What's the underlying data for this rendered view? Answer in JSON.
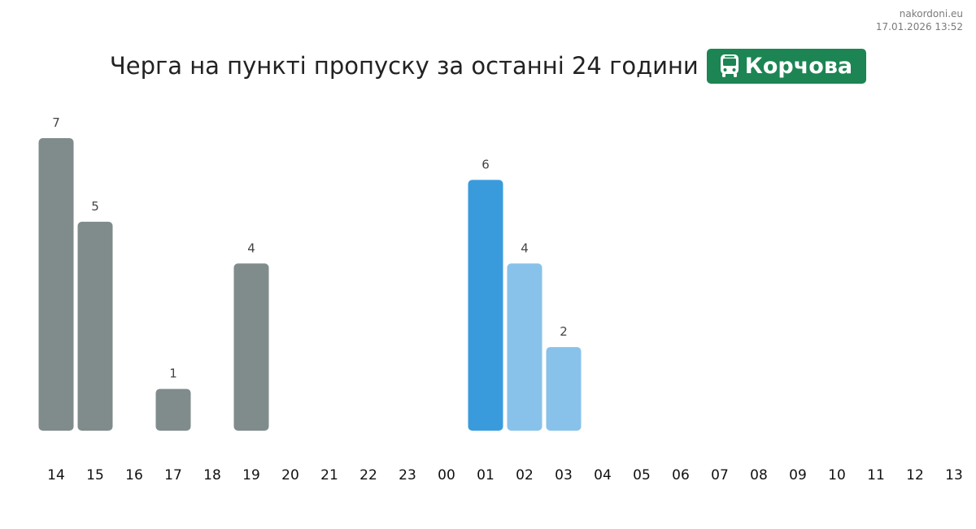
{
  "source": {
    "site": "nakordoni.eu",
    "timestamp": "17.01.2026 13:52"
  },
  "header": {
    "title": "Черга на пункті пропуску за останні 24 години",
    "badge": {
      "label": "Корчова",
      "icon": "bus-icon",
      "color": "#1c8553"
    }
  },
  "colors": {
    "past": "#7f8c8b",
    "current": "#3a9bdc",
    "forecast": "#88c2ea"
  },
  "chart_data": {
    "type": "bar",
    "categories": [
      "14",
      "15",
      "16",
      "17",
      "18",
      "19",
      "20",
      "21",
      "22",
      "23",
      "00",
      "01",
      "02",
      "03",
      "04",
      "05",
      "06",
      "07",
      "08",
      "09",
      "10",
      "11",
      "12",
      "13"
    ],
    "values": [
      7,
      5,
      0,
      1,
      0,
      4,
      0,
      0,
      0,
      0,
      0,
      6,
      4,
      2,
      0,
      0,
      0,
      0,
      0,
      0,
      0,
      0,
      0,
      0
    ],
    "bar_status": [
      "past",
      "past",
      "past",
      "past",
      "past",
      "past",
      "past",
      "past",
      "past",
      "past",
      "past",
      "current",
      "forecast",
      "forecast",
      "forecast",
      "forecast",
      "forecast",
      "forecast",
      "forecast",
      "forecast",
      "forecast",
      "forecast",
      "forecast",
      "forecast"
    ],
    "ylim": [
      0,
      7
    ],
    "grid": false,
    "legend": "none"
  }
}
